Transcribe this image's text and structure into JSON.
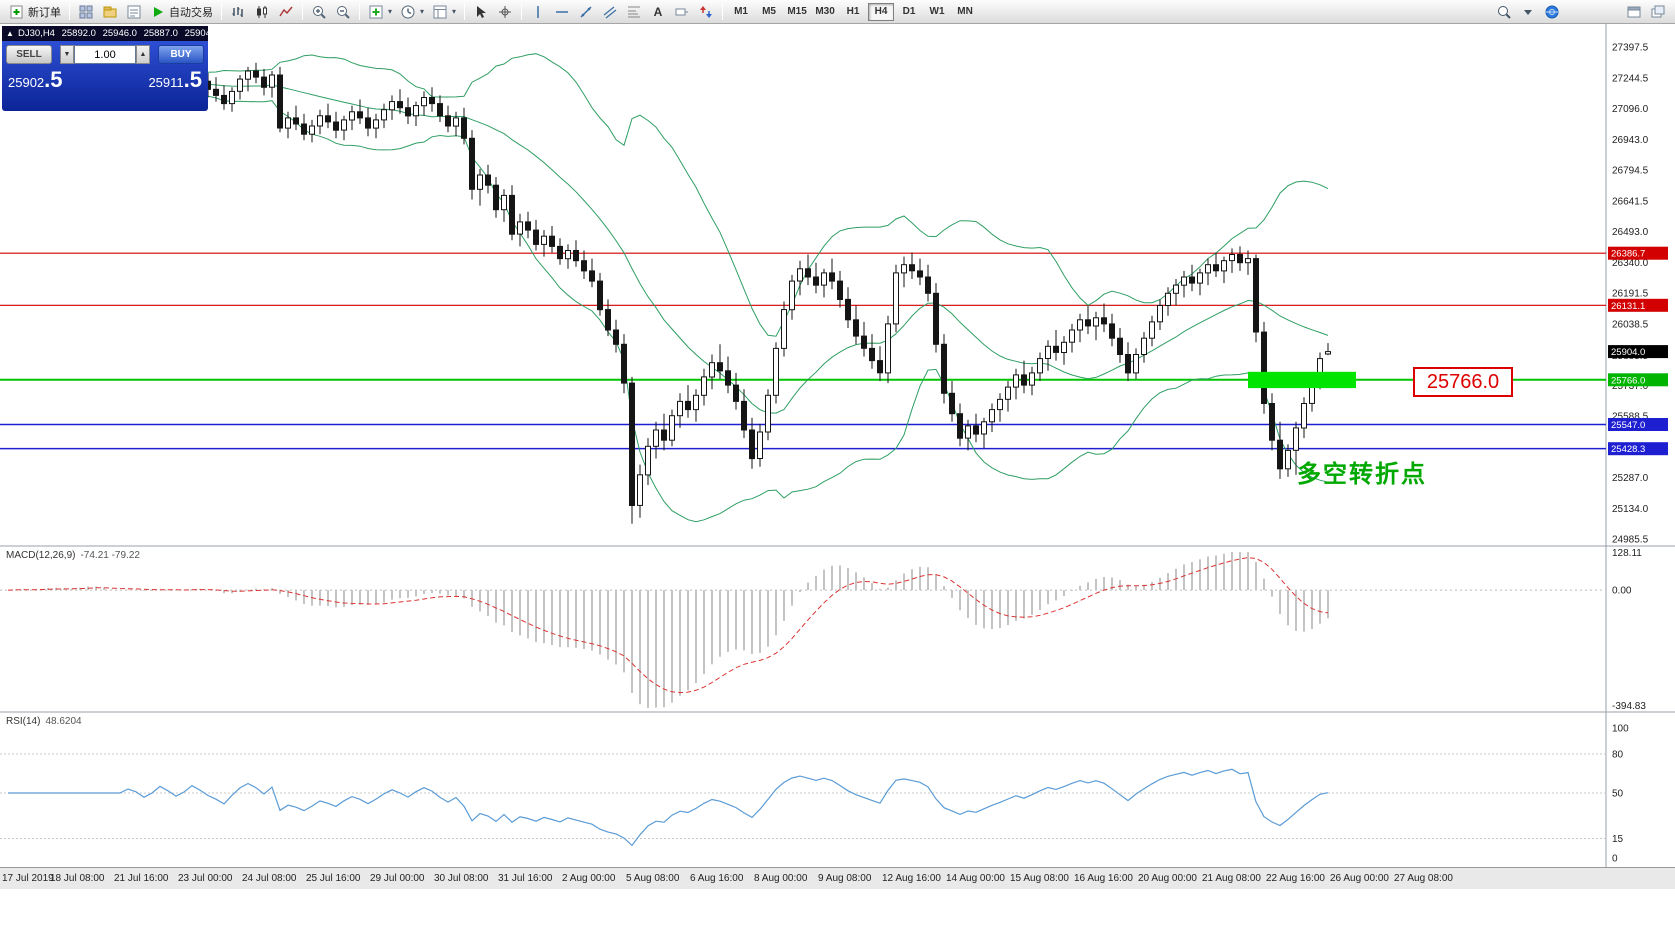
{
  "toolbar": {
    "items": [
      {
        "name": "new-order-button",
        "icon": "new-order",
        "label": "新订单"
      },
      {
        "sep": true
      },
      {
        "name": "charts-windows-icon",
        "icon": "grid-windows"
      },
      {
        "name": "profiles-icon",
        "icon": "profiles"
      },
      {
        "name": "data-window-icon",
        "icon": "data-window"
      },
      {
        "name": "autotrading-button",
        "icon": "play",
        "label": "自动交易"
      },
      {
        "sep": true
      },
      {
        "name": "bar-chart-icon",
        "icon": "bars"
      },
      {
        "name": "candlestick-chart-icon",
        "icon": "candles"
      },
      {
        "name": "line-chart-icon",
        "icon": "line-chart"
      },
      {
        "sep": true
      },
      {
        "name": "zoom-in-icon",
        "icon": "zoom-in"
      },
      {
        "name": "zoom-out-icon",
        "icon": "zoom-out"
      },
      {
        "sep": true
      },
      {
        "name": "indicators-list-icon",
        "icon": "plus-box",
        "caret": true
      },
      {
        "name": "periods-list-icon",
        "icon": "clock",
        "caret": true
      },
      {
        "name": "templates-icon",
        "icon": "template",
        "caret": true
      },
      {
        "sep": true
      },
      {
        "name": "cursor-icon",
        "icon": "cursor"
      },
      {
        "name": "crosshair-icon",
        "icon": "crosshair"
      },
      {
        "sep": true
      },
      {
        "name": "vertical-line-icon",
        "icon": "vline"
      },
      {
        "name": "horizontal-line-icon",
        "icon": "hline"
      },
      {
        "name": "trendline-icon",
        "icon": "trend"
      },
      {
        "name": "equidistant-channel-icon",
        "icon": "channel"
      },
      {
        "name": "fibonacci-icon",
        "icon": "fibo"
      },
      {
        "name": "text-icon",
        "icon": "text"
      },
      {
        "name": "text-label-icon",
        "icon": "label"
      },
      {
        "name": "arrows-icon",
        "icon": "arrows"
      },
      {
        "sep": true
      }
    ],
    "timeframes": [
      "M1",
      "M5",
      "M15",
      "M30",
      "H1",
      "H4",
      "D1",
      "W1",
      "MN"
    ],
    "active_timeframe": "H4",
    "right_items": [
      {
        "name": "search-icon",
        "icon": "search"
      },
      {
        "name": "search-dropdown-icon",
        "icon": "chevron-down"
      },
      {
        "name": "community-icon",
        "icon": "globe"
      },
      {
        "gap": 58
      },
      {
        "name": "new-window-icon",
        "icon": "new-window"
      },
      {
        "name": "windows-arrange-icon",
        "icon": "arrange"
      }
    ]
  },
  "chart": {
    "symbol_period": "DJ30,H4",
    "open": "25892.0",
    "high": "25946.0",
    "low": "25887.0",
    "close": "25904.0"
  },
  "order_panel": {
    "collapse_glyph": "▲",
    "sell_label": "SELL",
    "buy_label": "BUY",
    "volume": "1.00",
    "volume_down_glyph": "▼",
    "volume_up_glyph": "▲",
    "sell_price_base": "25902",
    "sell_price_big": ".5",
    "buy_price_base": "25911",
    "buy_price_big": ".5"
  },
  "chart_data": {
    "type": "candlestick",
    "symbol": "DJ30",
    "timeframe": "H4",
    "price_axis_range": {
      "top": 27397.5,
      "bottom": 24985.5
    },
    "price_axis_labels": [
      "27397.5",
      "27244.5",
      "27096.0",
      "26943.0",
      "26794.5",
      "26641.5",
      "26493.0",
      "26340.0",
      "26191.5",
      "26038.5",
      "25885.5",
      "25737.0",
      "25588.5",
      "25435.5",
      "25287.0",
      "25134.0",
      "24985.5"
    ],
    "time_axis_labels": [
      "17 Jul 2019",
      "18 Jul 08:00",
      "21 Jul 16:00",
      "23 Jul 00:00",
      "24 Jul 08:00",
      "25 Jul 16:00",
      "29 Jul 00:00",
      "30 Jul 08:00",
      "31 Jul 16:00",
      "2 Aug 00:00",
      "5 Aug 08:00",
      "6 Aug 16:00",
      "8 Aug 00:00",
      "9 Aug 08:00",
      "12 Aug 16:00",
      "14 Aug 00:00",
      "15 Aug 08:00",
      "16 Aug 16:00",
      "20 Aug 00:00",
      "21 Aug 08:00",
      "22 Aug 16:00",
      "26 Aug 00:00",
      "27 Aug 08:00"
    ],
    "bollinger": {
      "period": 20,
      "deviation": 2,
      "color": "#2f9e64"
    },
    "levels": [
      {
        "price": 26386.7,
        "label": "26386.7",
        "color": "#d20000",
        "tag_bg": "#d20000",
        "width": 1.2
      },
      {
        "price": 26131.1,
        "label": "26131.1",
        "color": "#d20000",
        "tag_bg": "#d20000",
        "width": 1.2
      },
      {
        "price": 25766.0,
        "label": "25766.0",
        "color": "#00c400",
        "tag_bg": "#00b400",
        "width": 2
      },
      {
        "price": 25547.0,
        "label": "25547.0",
        "color": "#1f1fd2",
        "tag_bg": "#1f1fd2",
        "width": 1.5
      },
      {
        "price": 25428.3,
        "label": "25428.3",
        "color": "#1f1fd2",
        "tag_bg": "#1f1fd2",
        "width": 1.5
      }
    ],
    "current_price": {
      "value": 25904.0,
      "label": "25904.0",
      "tag_bg": "#000000"
    },
    "highlight_zone": {
      "from_bar": 155,
      "to_bar": 168.5,
      "top_price": 25805,
      "bottom_price": 25725,
      "color": "#00e400"
    },
    "callout": {
      "text": "25766.0",
      "color": "#dd0000"
    },
    "annotation": {
      "text": "多空转折点",
      "color": "#00a800"
    },
    "macd": {
      "name": "MACD(12,26,9)",
      "values": "-74.21 -79.22",
      "params": [
        12,
        26,
        9
      ],
      "axis_labels": [
        "128.11",
        "0.00",
        "-394.83"
      ],
      "histogram_color": "#c4c4c4",
      "signal_color": "#dd3333"
    },
    "rsi": {
      "name": "RSI(14)",
      "value": "48.6204",
      "period": 14,
      "levels": [
        80,
        50,
        15
      ],
      "axis_labels": [
        "100",
        "80",
        "50",
        "15",
        "0"
      ],
      "line_color": "#5b9bd5"
    },
    "candles": [
      [
        27150,
        27220,
        27120,
        27200
      ],
      [
        27200,
        27260,
        27170,
        27240
      ],
      [
        27240,
        27280,
        27200,
        27220
      ],
      [
        27220,
        27250,
        27150,
        27180
      ],
      [
        27180,
        27230,
        27140,
        27210
      ],
      [
        27210,
        27290,
        27190,
        27270
      ],
      [
        27270,
        27300,
        27210,
        27230
      ],
      [
        27230,
        27260,
        27160,
        27190
      ],
      [
        27190,
        27240,
        27150,
        27220
      ],
      [
        27220,
        27280,
        27180,
        27250
      ],
      [
        27250,
        27300,
        27200,
        27270
      ],
      [
        27270,
        27310,
        27220,
        27240
      ],
      [
        27240,
        27270,
        27170,
        27200
      ],
      [
        27200,
        27250,
        27130,
        27160
      ],
      [
        27160,
        27220,
        27110,
        27190
      ],
      [
        27190,
        27260,
        27150,
        27230
      ],
      [
        27230,
        27290,
        27180,
        27210
      ],
      [
        27210,
        27250,
        27140,
        27170
      ],
      [
        27170,
        27230,
        27120,
        27200
      ],
      [
        27200,
        27270,
        27160,
        27250
      ],
      [
        27250,
        27300,
        27190,
        27220
      ],
      [
        27220,
        27260,
        27150,
        27180
      ],
      [
        27180,
        27240,
        27130,
        27210
      ],
      [
        27210,
        27280,
        27170,
        27260
      ],
      [
        27260,
        27310,
        27200,
        27230
      ],
      [
        27230,
        27270,
        27150,
        27190
      ],
      [
        27190,
        27250,
        27130,
        27160
      ],
      [
        27160,
        27210,
        27090,
        27120
      ],
      [
        27120,
        27200,
        27080,
        27180
      ],
      [
        27180,
        27260,
        27140,
        27240
      ],
      [
        27240,
        27300,
        27180,
        27280
      ],
      [
        27280,
        27320,
        27220,
        27250
      ],
      [
        27250,
        27290,
        27160,
        27200
      ],
      [
        27200,
        27280,
        27150,
        27260
      ],
      [
        27260,
        27300,
        26980,
        27000
      ],
      [
        27000,
        27080,
        26950,
        27050
      ],
      [
        27050,
        27110,
        26990,
        27020
      ],
      [
        27020,
        27070,
        26940,
        26970
      ],
      [
        26970,
        27040,
        26930,
        27010
      ],
      [
        27010,
        27090,
        26970,
        27060
      ],
      [
        27060,
        27120,
        27000,
        27030
      ],
      [
        27030,
        27080,
        26950,
        26990
      ],
      [
        26990,
        27060,
        26940,
        27040
      ],
      [
        27040,
        27110,
        26990,
        27080
      ],
      [
        27080,
        27140,
        27020,
        27050
      ],
      [
        27050,
        27100,
        26960,
        27000
      ],
      [
        27000,
        27070,
        26950,
        27040
      ],
      [
        27040,
        27120,
        27000,
        27090
      ],
      [
        27090,
        27160,
        27040,
        27130
      ],
      [
        27130,
        27190,
        27070,
        27100
      ],
      [
        27100,
        27150,
        27020,
        27060
      ],
      [
        27060,
        27130,
        27010,
        27110
      ],
      [
        27110,
        27180,
        27060,
        27150
      ],
      [
        27150,
        27200,
        27080,
        27120
      ],
      [
        27120,
        27160,
        27030,
        27060
      ],
      [
        27060,
        27110,
        26980,
        27010
      ],
      [
        27010,
        27080,
        26960,
        27050
      ],
      [
        27050,
        27100,
        26920,
        26950
      ],
      [
        26950,
        26990,
        26650,
        26700
      ],
      [
        26700,
        26800,
        26620,
        26770
      ],
      [
        26770,
        26820,
        26680,
        26720
      ],
      [
        26720,
        26760,
        26560,
        26600
      ],
      [
        26600,
        26700,
        26540,
        26670
      ],
      [
        26670,
        26720,
        26450,
        26480
      ],
      [
        26480,
        26580,
        26420,
        26540
      ],
      [
        26540,
        26590,
        26460,
        26500
      ],
      [
        26500,
        26550,
        26400,
        26430
      ],
      [
        26430,
        26500,
        26370,
        26470
      ],
      [
        26470,
        26520,
        26390,
        26420
      ],
      [
        26420,
        26460,
        26330,
        26360
      ],
      [
        26360,
        26430,
        26310,
        26400
      ],
      [
        26400,
        26450,
        26320,
        26350
      ],
      [
        26350,
        26400,
        26260,
        26300
      ],
      [
        26300,
        26360,
        26220,
        26250
      ],
      [
        26250,
        26290,
        26080,
        26110
      ],
      [
        26110,
        26160,
        25980,
        26010
      ],
      [
        26010,
        26060,
        25900,
        25940
      ],
      [
        25940,
        25990,
        25700,
        25750
      ],
      [
        25750,
        25780,
        25060,
        25150
      ],
      [
        25150,
        25350,
        25090,
        25300
      ],
      [
        25300,
        25480,
        25250,
        25440
      ],
      [
        25440,
        25560,
        25380,
        25520
      ],
      [
        25520,
        25600,
        25420,
        25470
      ],
      [
        25470,
        25620,
        25440,
        25590
      ],
      [
        25590,
        25700,
        25530,
        25660
      ],
      [
        25660,
        25740,
        25580,
        25620
      ],
      [
        25620,
        25720,
        25560,
        25690
      ],
      [
        25690,
        25820,
        25640,
        25780
      ],
      [
        25780,
        25890,
        25720,
        25850
      ],
      [
        25850,
        25940,
        25770,
        25810
      ],
      [
        25810,
        25880,
        25700,
        25740
      ],
      [
        25740,
        25800,
        25620,
        25660
      ],
      [
        25660,
        25720,
        25480,
        25520
      ],
      [
        25520,
        25580,
        25330,
        25380
      ],
      [
        25380,
        25550,
        25340,
        25510
      ],
      [
        25510,
        25720,
        25470,
        25690
      ],
      [
        25690,
        25950,
        25650,
        25920
      ],
      [
        25920,
        26150,
        25880,
        26110
      ],
      [
        26110,
        26280,
        26060,
        26250
      ],
      [
        26250,
        26350,
        26180,
        26310
      ],
      [
        26310,
        26380,
        26230,
        26270
      ],
      [
        26270,
        26340,
        26190,
        26230
      ],
      [
        26230,
        26310,
        26170,
        26290
      ],
      [
        26290,
        26360,
        26210,
        26250
      ],
      [
        26250,
        26300,
        26120,
        26160
      ],
      [
        26160,
        26220,
        26020,
        26060
      ],
      [
        26060,
        26130,
        25940,
        25980
      ],
      [
        25980,
        26050,
        25880,
        25920
      ],
      [
        25920,
        25990,
        25820,
        25860
      ],
      [
        25860,
        25930,
        25760,
        25800
      ],
      [
        25800,
        26080,
        25750,
        26040
      ],
      [
        26040,
        26330,
        26000,
        26290
      ],
      [
        26290,
        26370,
        26220,
        26330
      ],
      [
        26330,
        26390,
        26260,
        26300
      ],
      [
        26300,
        26360,
        26230,
        26270
      ],
      [
        26270,
        26330,
        26150,
        26190
      ],
      [
        26190,
        26240,
        25900,
        25940
      ],
      [
        25940,
        25990,
        25650,
        25700
      ],
      [
        25700,
        25760,
        25560,
        25600
      ],
      [
        25600,
        25650,
        25440,
        25480
      ],
      [
        25480,
        25570,
        25420,
        25540
      ],
      [
        25540,
        25600,
        25460,
        25500
      ],
      [
        25500,
        25580,
        25430,
        25560
      ],
      [
        25560,
        25650,
        25510,
        25620
      ],
      [
        25620,
        25700,
        25560,
        25670
      ],
      [
        25670,
        25760,
        25610,
        25730
      ],
      [
        25730,
        25820,
        25670,
        25790
      ],
      [
        25790,
        25860,
        25700,
        25740
      ],
      [
        25740,
        25830,
        25690,
        25800
      ],
      [
        25800,
        25900,
        25760,
        25870
      ],
      [
        25870,
        25960,
        25810,
        25930
      ],
      [
        25930,
        26010,
        25860,
        25900
      ],
      [
        25900,
        25980,
        25840,
        25950
      ],
      [
        25950,
        26040,
        25900,
        26010
      ],
      [
        26010,
        26090,
        25950,
        26060
      ],
      [
        26060,
        26130,
        25990,
        26030
      ],
      [
        26030,
        26100,
        25960,
        26070
      ],
      [
        26070,
        26140,
        26000,
        26040
      ],
      [
        26040,
        26090,
        25930,
        25970
      ],
      [
        25970,
        26020,
        25850,
        25890
      ],
      [
        25890,
        25950,
        25760,
        25800
      ],
      [
        25800,
        25920,
        25770,
        25890
      ],
      [
        25890,
        26000,
        25850,
        25970
      ],
      [
        25970,
        26080,
        25930,
        26050
      ],
      [
        26050,
        26160,
        26010,
        26130
      ],
      [
        26130,
        26220,
        26080,
        26190
      ],
      [
        26190,
        26260,
        26130,
        26230
      ],
      [
        26230,
        26300,
        26170,
        26270
      ],
      [
        26270,
        26330,
        26200,
        26240
      ],
      [
        26240,
        26310,
        26180,
        26290
      ],
      [
        26290,
        26360,
        26230,
        26330
      ],
      [
        26330,
        26390,
        26270,
        26300
      ],
      [
        26300,
        26370,
        26240,
        26350
      ],
      [
        26350,
        26410,
        26290,
        26380
      ],
      [
        26380,
        26420,
        26300,
        26340
      ],
      [
        26340,
        26400,
        26280,
        26360
      ],
      [
        26360,
        26380,
        25950,
        26000
      ],
      [
        26000,
        26050,
        25600,
        25650
      ],
      [
        25650,
        25700,
        25420,
        25470
      ],
      [
        25470,
        25560,
        25280,
        25330
      ],
      [
        25330,
        25450,
        25290,
        25420
      ],
      [
        25420,
        25560,
        25300,
        25530
      ],
      [
        25530,
        25680,
        25480,
        25650
      ],
      [
        25650,
        25800,
        25610,
        25760
      ],
      [
        25760,
        25900,
        25720,
        25870
      ],
      [
        25892,
        25946,
        25887,
        25904
      ]
    ]
  }
}
